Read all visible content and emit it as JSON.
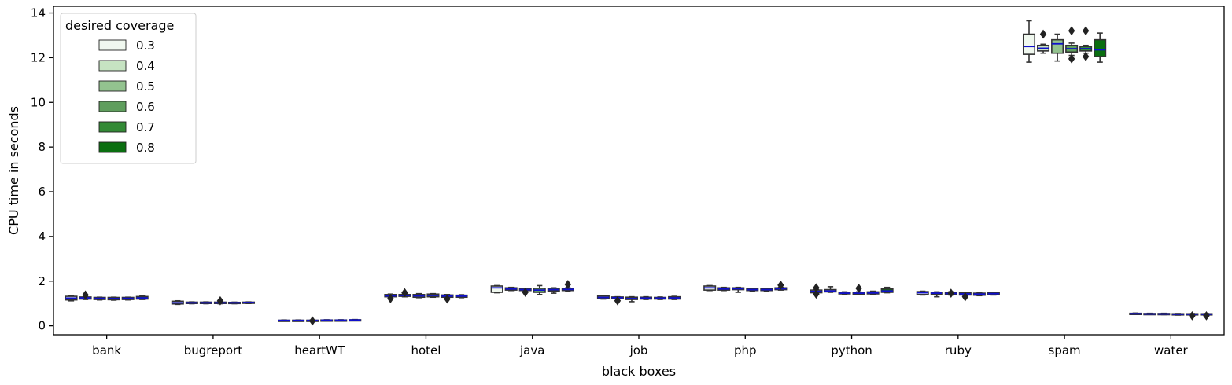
{
  "chart_data": {
    "type": "boxplot",
    "xlabel": "black boxes",
    "ylabel": "CPU time in seconds",
    "ylim": [
      -0.4,
      14.3
    ],
    "yticks": [
      0,
      2,
      4,
      6,
      8,
      10,
      12,
      14
    ],
    "grid": false,
    "legend": {
      "title": "desired coverage",
      "position": "top-left",
      "entries": [
        "0.3",
        "0.4",
        "0.5",
        "0.6",
        "0.7",
        "0.8"
      ]
    },
    "colors": {
      "series": [
        "#f0f8ef",
        "#c6e3c2",
        "#93c38f",
        "#5f9e5d",
        "#338a36",
        "#0a6e10"
      ],
      "median": "#1010cc",
      "outline": "#333333"
    },
    "categories": [
      "bank",
      "bugreport",
      "heartWT",
      "hotel",
      "java",
      "job",
      "php",
      "python",
      "ruby",
      "spam",
      "water"
    ],
    "series": [
      {
        "name": "0.3",
        "boxes": [
          {
            "q1": 1.16,
            "med": 1.24,
            "q3": 1.32,
            "lo": 1.12,
            "hi": 1.36,
            "fl": []
          },
          {
            "q1": 0.98,
            "med": 1.03,
            "q3": 1.1,
            "lo": 0.96,
            "hi": 1.12,
            "fl": []
          },
          {
            "q1": 0.23,
            "med": 0.24,
            "q3": 0.25,
            "lo": 0.22,
            "hi": 0.26,
            "fl": []
          },
          {
            "q1": 1.3,
            "med": 1.34,
            "q3": 1.4,
            "lo": 1.28,
            "hi": 1.42,
            "fl": [
              1.22
            ]
          },
          {
            "q1": 1.5,
            "med": 1.7,
            "q3": 1.78,
            "lo": 1.48,
            "hi": 1.8,
            "fl": []
          },
          {
            "q1": 1.22,
            "med": 1.27,
            "q3": 1.33,
            "lo": 1.2,
            "hi": 1.35,
            "fl": []
          },
          {
            "q1": 1.6,
            "med": 1.7,
            "q3": 1.78,
            "lo": 1.58,
            "hi": 1.8,
            "fl": []
          },
          {
            "q1": 1.48,
            "med": 1.54,
            "q3": 1.6,
            "lo": 1.45,
            "hi": 1.62,
            "fl": [
              1.42,
              1.7
            ]
          },
          {
            "q1": 1.4,
            "med": 1.48,
            "q3": 1.53,
            "lo": 1.38,
            "hi": 1.55,
            "fl": []
          },
          {
            "q1": 12.15,
            "med": 12.5,
            "q3": 13.05,
            "lo": 11.8,
            "hi": 13.65,
            "fl": []
          },
          {
            "q1": 0.52,
            "med": 0.54,
            "q3": 0.56,
            "lo": 0.51,
            "hi": 0.57,
            "fl": []
          }
        ]
      },
      {
        "name": "0.4",
        "boxes": [
          {
            "q1": 1.2,
            "med": 1.25,
            "q3": 1.29,
            "lo": 1.18,
            "hi": 1.31,
            "fl": [
              1.38
            ]
          },
          {
            "q1": 1.0,
            "med": 1.03,
            "q3": 1.06,
            "lo": 0.99,
            "hi": 1.07,
            "fl": []
          },
          {
            "q1": 0.23,
            "med": 0.24,
            "q3": 0.25,
            "lo": 0.22,
            "hi": 0.26,
            "fl": []
          },
          {
            "q1": 1.32,
            "med": 1.36,
            "q3": 1.4,
            "lo": 1.3,
            "hi": 1.42,
            "fl": [
              1.48
            ]
          },
          {
            "q1": 1.6,
            "med": 1.65,
            "q3": 1.7,
            "lo": 1.58,
            "hi": 1.72,
            "fl": []
          },
          {
            "q1": 1.23,
            "med": 1.26,
            "q3": 1.29,
            "lo": 1.22,
            "hi": 1.3,
            "fl": [
              1.12
            ]
          },
          {
            "q1": 1.6,
            "med": 1.65,
            "q3": 1.7,
            "lo": 1.58,
            "hi": 1.72,
            "fl": []
          },
          {
            "q1": 1.52,
            "med": 1.56,
            "q3": 1.62,
            "lo": 1.5,
            "hi": 1.75,
            "fl": []
          },
          {
            "q1": 1.42,
            "med": 1.46,
            "q3": 1.5,
            "lo": 1.3,
            "hi": 1.52,
            "fl": []
          },
          {
            "q1": 12.3,
            "med": 12.42,
            "q3": 12.55,
            "lo": 12.2,
            "hi": 12.6,
            "fl": [
              13.05
            ]
          },
          {
            "q1": 0.52,
            "med": 0.53,
            "q3": 0.55,
            "lo": 0.51,
            "hi": 0.56,
            "fl": []
          }
        ]
      },
      {
        "name": "0.5",
        "boxes": [
          {
            "q1": 1.18,
            "med": 1.23,
            "q3": 1.27,
            "lo": 1.16,
            "hi": 1.28,
            "fl": []
          },
          {
            "q1": 1.0,
            "med": 1.03,
            "q3": 1.06,
            "lo": 0.99,
            "hi": 1.07,
            "fl": []
          },
          {
            "q1": 0.23,
            "med": 0.24,
            "q3": 0.25,
            "lo": 0.22,
            "hi": 0.26,
            "fl": [
              0.22
            ]
          },
          {
            "q1": 1.28,
            "med": 1.34,
            "q3": 1.4,
            "lo": 1.26,
            "hi": 1.44,
            "fl": []
          },
          {
            "q1": 1.58,
            "med": 1.62,
            "q3": 1.67,
            "lo": 1.56,
            "hi": 1.68,
            "fl": [
              1.5
            ]
          },
          {
            "q1": 1.18,
            "med": 1.22,
            "q3": 1.28,
            "lo": 1.08,
            "hi": 1.3,
            "fl": []
          },
          {
            "q1": 1.62,
            "med": 1.66,
            "q3": 1.7,
            "lo": 1.5,
            "hi": 1.72,
            "fl": []
          },
          {
            "q1": 1.43,
            "med": 1.46,
            "q3": 1.5,
            "lo": 1.42,
            "hi": 1.52,
            "fl": []
          },
          {
            "q1": 1.4,
            "med": 1.45,
            "q3": 1.5,
            "lo": 1.38,
            "hi": 1.52,
            "fl": [
              1.46
            ]
          },
          {
            "q1": 12.2,
            "med": 12.62,
            "q3": 12.8,
            "lo": 11.85,
            "hi": 13.05,
            "fl": []
          },
          {
            "q1": 0.51,
            "med": 0.53,
            "q3": 0.55,
            "lo": 0.5,
            "hi": 0.56,
            "fl": []
          }
        ]
      },
      {
        "name": "0.6",
        "boxes": [
          {
            "q1": 1.17,
            "med": 1.22,
            "q3": 1.27,
            "lo": 1.15,
            "hi": 1.28,
            "fl": []
          },
          {
            "q1": 1.0,
            "med": 1.03,
            "q3": 1.06,
            "lo": 0.99,
            "hi": 1.07,
            "fl": [
              1.12
            ]
          },
          {
            "q1": 0.24,
            "med": 0.25,
            "q3": 0.26,
            "lo": 0.23,
            "hi": 0.27,
            "fl": []
          },
          {
            "q1": 1.3,
            "med": 1.36,
            "q3": 1.42,
            "lo": 1.28,
            "hi": 1.44,
            "fl": []
          },
          {
            "q1": 1.5,
            "med": 1.6,
            "q3": 1.68,
            "lo": 1.4,
            "hi": 1.8,
            "fl": []
          },
          {
            "q1": 1.2,
            "med": 1.24,
            "q3": 1.28,
            "lo": 1.18,
            "hi": 1.3,
            "fl": []
          },
          {
            "q1": 1.58,
            "med": 1.62,
            "q3": 1.66,
            "lo": 1.56,
            "hi": 1.68,
            "fl": []
          },
          {
            "q1": 1.42,
            "med": 1.46,
            "q3": 1.5,
            "lo": 1.41,
            "hi": 1.52,
            "fl": [
              1.68
            ]
          },
          {
            "q1": 1.38,
            "med": 1.43,
            "q3": 1.48,
            "lo": 1.36,
            "hi": 1.5,
            "fl": [
              1.3
            ]
          },
          {
            "q1": 12.25,
            "med": 12.4,
            "q3": 12.55,
            "lo": 12.1,
            "hi": 12.65,
            "fl": [
              13.2,
              11.95
            ]
          },
          {
            "q1": 0.49,
            "med": 0.52,
            "q3": 0.54,
            "lo": 0.48,
            "hi": 0.55,
            "fl": []
          }
        ]
      },
      {
        "name": "0.7",
        "boxes": [
          {
            "q1": 1.18,
            "med": 1.23,
            "q3": 1.27,
            "lo": 1.16,
            "hi": 1.28,
            "fl": []
          },
          {
            "q1": 1.0,
            "med": 1.03,
            "q3": 1.05,
            "lo": 0.99,
            "hi": 1.06,
            "fl": []
          },
          {
            "q1": 0.24,
            "med": 0.25,
            "q3": 0.26,
            "lo": 0.23,
            "hi": 0.27,
            "fl": []
          },
          {
            "q1": 1.28,
            "med": 1.33,
            "q3": 1.38,
            "lo": 1.26,
            "hi": 1.4,
            "fl": [
              1.2
            ]
          },
          {
            "q1": 1.56,
            "med": 1.62,
            "q3": 1.68,
            "lo": 1.46,
            "hi": 1.7,
            "fl": []
          },
          {
            "q1": 1.2,
            "med": 1.24,
            "q3": 1.27,
            "lo": 1.18,
            "hi": 1.29,
            "fl": []
          },
          {
            "q1": 1.58,
            "med": 1.62,
            "q3": 1.65,
            "lo": 1.56,
            "hi": 1.67,
            "fl": []
          },
          {
            "q1": 1.43,
            "med": 1.47,
            "q3": 1.52,
            "lo": 1.42,
            "hi": 1.55,
            "fl": []
          },
          {
            "q1": 1.37,
            "med": 1.42,
            "q3": 1.46,
            "lo": 1.35,
            "hi": 1.48,
            "fl": []
          },
          {
            "q1": 12.3,
            "med": 12.4,
            "q3": 12.5,
            "lo": 12.2,
            "hi": 12.55,
            "fl": [
              13.2,
              12.05
            ]
          },
          {
            "q1": 0.5,
            "med": 0.52,
            "q3": 0.54,
            "lo": 0.49,
            "hi": 0.55,
            "fl": [
              0.45
            ]
          }
        ]
      },
      {
        "name": "0.8",
        "boxes": [
          {
            "q1": 1.2,
            "med": 1.25,
            "q3": 1.31,
            "lo": 1.18,
            "hi": 1.34,
            "fl": []
          },
          {
            "q1": 1.01,
            "med": 1.04,
            "q3": 1.06,
            "lo": 1.0,
            "hi": 1.07,
            "fl": []
          },
          {
            "q1": 0.25,
            "med": 0.26,
            "q3": 0.27,
            "lo": 0.24,
            "hi": 0.28,
            "fl": []
          },
          {
            "q1": 1.28,
            "med": 1.33,
            "q3": 1.37,
            "lo": 1.26,
            "hi": 1.39,
            "fl": []
          },
          {
            "q1": 1.58,
            "med": 1.63,
            "q3": 1.68,
            "lo": 1.56,
            "hi": 1.7,
            "fl": [
              1.85
            ]
          },
          {
            "q1": 1.2,
            "med": 1.25,
            "q3": 1.3,
            "lo": 1.18,
            "hi": 1.32,
            "fl": []
          },
          {
            "q1": 1.62,
            "med": 1.66,
            "q3": 1.7,
            "lo": 1.6,
            "hi": 1.72,
            "fl": [
              1.82
            ]
          },
          {
            "q1": 1.5,
            "med": 1.56,
            "q3": 1.65,
            "lo": 1.48,
            "hi": 1.72,
            "fl": []
          },
          {
            "q1": 1.4,
            "med": 1.44,
            "q3": 1.48,
            "lo": 1.38,
            "hi": 1.5,
            "fl": []
          },
          {
            "q1": 12.05,
            "med": 12.35,
            "q3": 12.8,
            "lo": 11.8,
            "hi": 13.1,
            "fl": []
          },
          {
            "q1": 0.5,
            "med": 0.52,
            "q3": 0.54,
            "lo": 0.48,
            "hi": 0.55,
            "fl": [
              0.45
            ]
          }
        ]
      }
    ]
  }
}
